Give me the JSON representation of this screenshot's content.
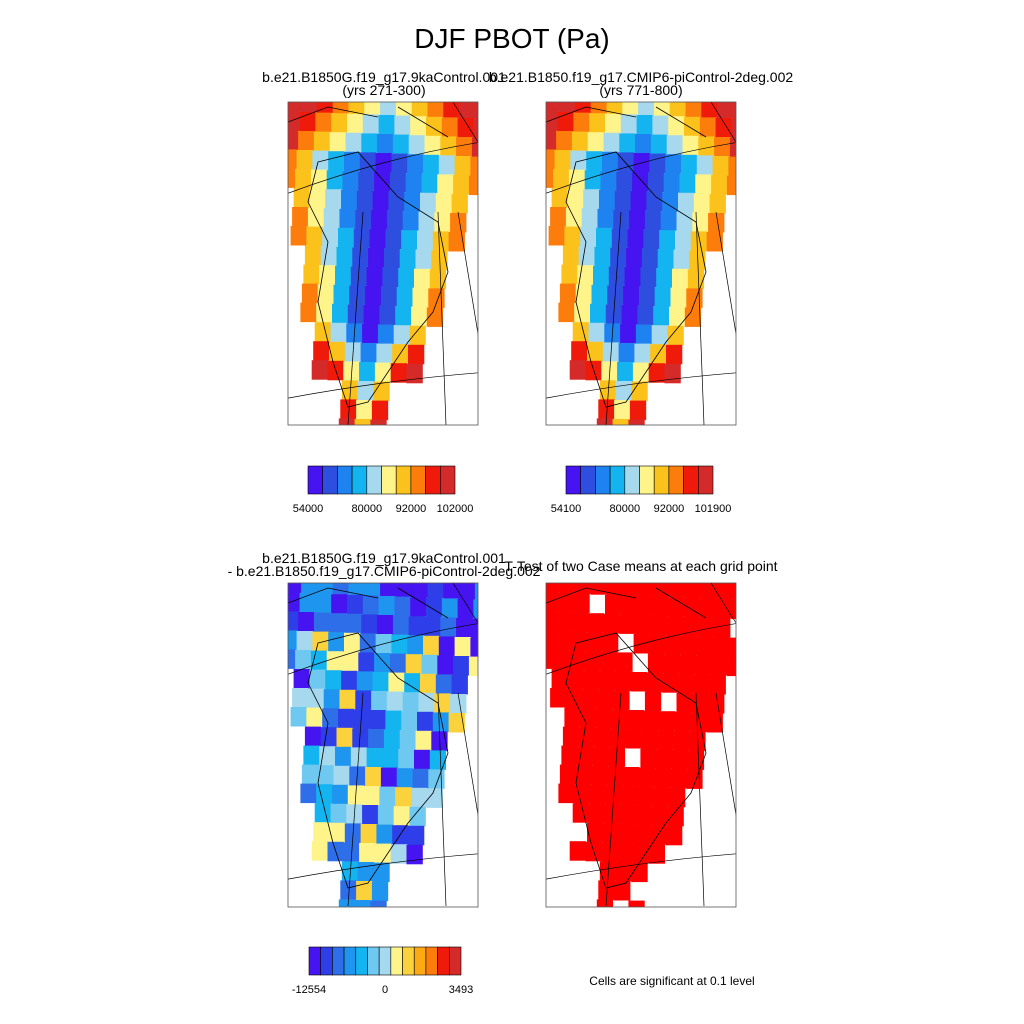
{
  "title": "DJF PBOT (Pa)",
  "panels": [
    {
      "title": "b.e21.B1850G.f19_g17.9kaControl.001",
      "subtitle": "(yrs 271-300)"
    },
    {
      "title": "b.e21.B1850.f19_g17.CMIP6-piControl-2deg.002",
      "subtitle": "(yrs 771-800)"
    },
    {
      "title": "b.e21.B1850G.f19_g17.9kaControl.001",
      "subtitle": "- b.e21.B1850.f19_g17.CMIP6-piControl-2deg.002"
    },
    {
      "title": "T-Test of two Case means at each grid point"
    }
  ],
  "colorbars": [
    {
      "colors": [
        "#4514f0",
        "#2e4ee0",
        "#1e82f0",
        "#14b4f0",
        "#a6d8ee",
        "#fef48a",
        "#fcc21c",
        "#fc7c0c",
        "#f01a0a",
        "#d42a2a"
      ],
      "labels": [
        "54000",
        "80000",
        "92000",
        "102000"
      ]
    },
    {
      "colors": [
        "#4514f0",
        "#2e4ee0",
        "#1e82f0",
        "#14b4f0",
        "#a6d8ee",
        "#fef48a",
        "#fcc21c",
        "#fc7c0c",
        "#f01a0a",
        "#d42a2a"
      ],
      "labels": [
        "54100",
        "80000",
        "92000",
        "101900"
      ]
    },
    {
      "colors": [
        "#4514f0",
        "#2e3ee8",
        "#2e6ee8",
        "#1e96f0",
        "#14b4f0",
        "#6ec8f0",
        "#a6d8ee",
        "#fef48a",
        "#fcd23c",
        "#fcaa14",
        "#fc7c0c",
        "#f01a0a",
        "#d42a2a"
      ],
      "labels": [
        "-12554",
        "0",
        "3493"
      ]
    }
  ],
  "significance_color": "#ff0000",
  "note": "Cells are significant at 0.1 level"
}
